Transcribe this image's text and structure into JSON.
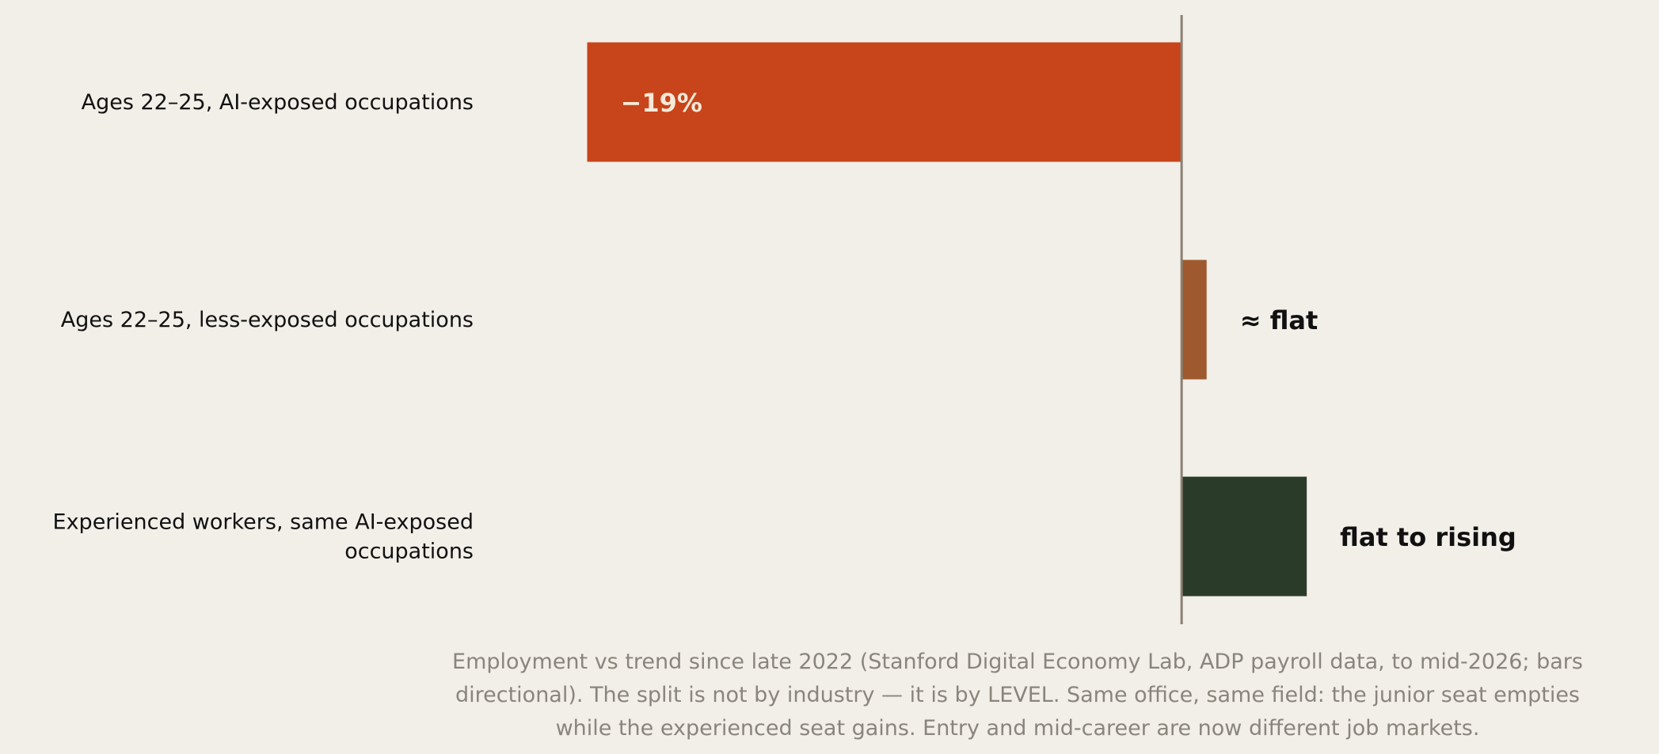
{
  "chart_data": {
    "type": "bar",
    "orientation": "horizontal",
    "categories": [
      "Ages 22–25, AI-exposed occupations",
      "Ages 22–25, less-exposed occupations",
      "Experienced workers, same AI-exposed occupations"
    ],
    "category_lines": [
      [
        "Ages 22–25, AI-exposed occupations"
      ],
      [
        "Ages 22–25, less-exposed occupations"
      ],
      [
        "Experienced workers, same AI-exposed",
        "occupations"
      ]
    ],
    "values": [
      -19,
      0.8,
      4
    ],
    "data_labels": [
      "−19%",
      "≈ flat",
      "flat to rising"
    ],
    "colors": [
      "#c8441a",
      "#9e5a2e",
      "#2a3b2a"
    ],
    "xlim": [
      -20,
      14.5
    ],
    "grid": false,
    "zero_line": true,
    "caption": "Employment vs trend since late 2022 (Stanford Digital Economy Lab, ADP payroll data, to mid-2026; bars directional). The split is not by industry — it is by LEVEL. Same office, same field: the junior seat empties while the experienced seat gains. Entry and mid-career are now different job markets."
  }
}
